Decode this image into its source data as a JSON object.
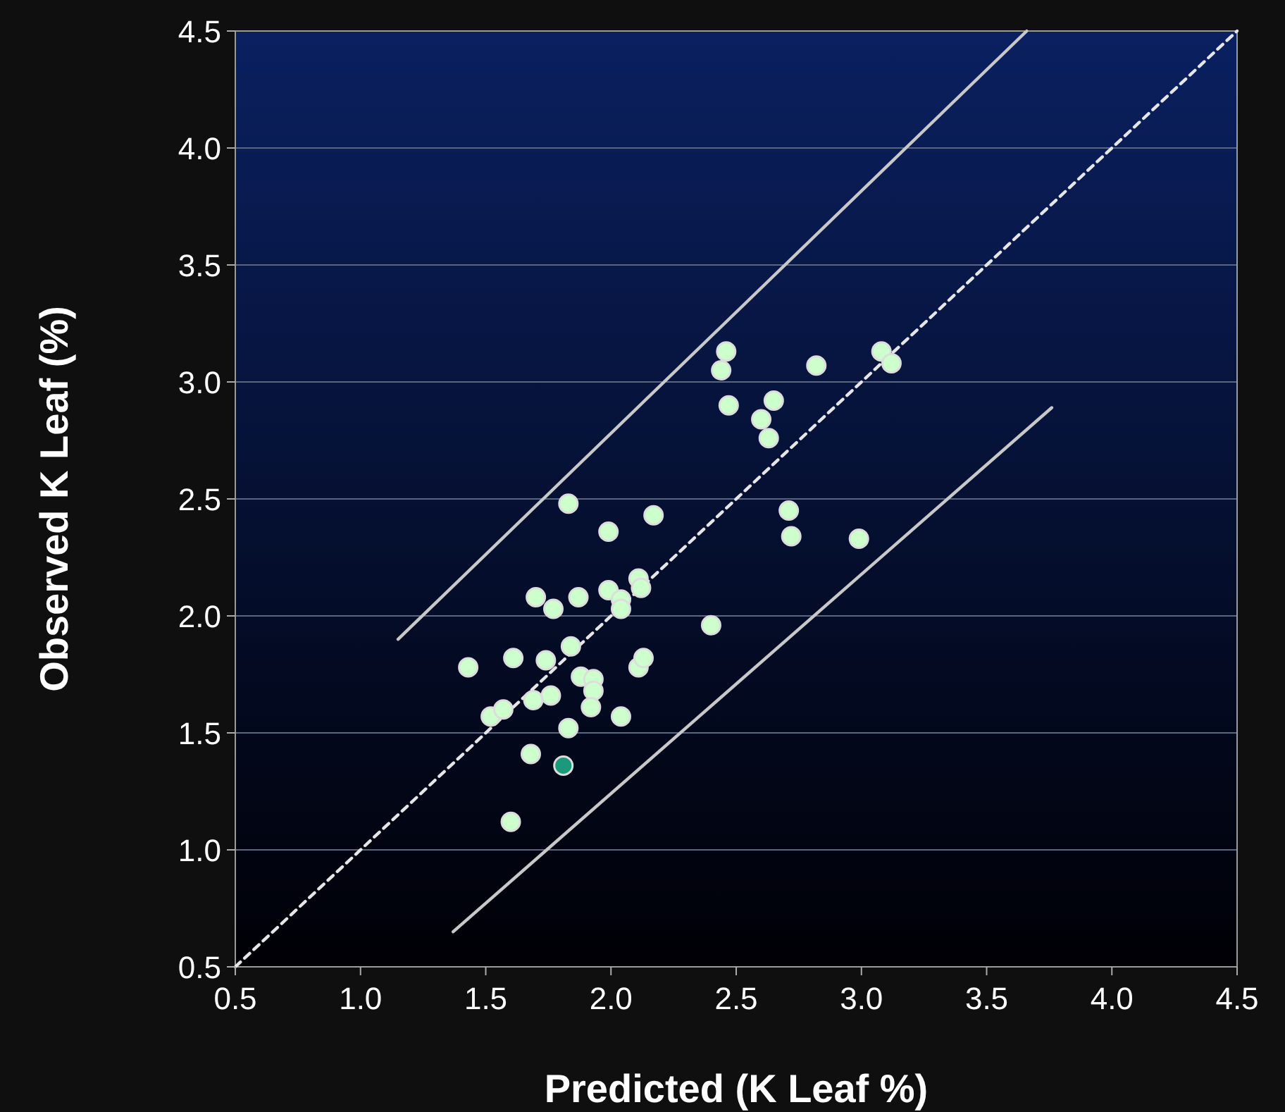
{
  "chart_data": {
    "type": "scatter",
    "xlabel": "Predicted (K Leaf %)",
    "ylabel": "Observed K Leaf (%)",
    "xlim": [
      0.5,
      4.5
    ],
    "ylim": [
      0.5,
      4.5
    ],
    "xticks": [
      {
        "value": 0.5,
        "label": "0.5"
      },
      {
        "value": 1,
        "label": "1.0"
      },
      {
        "value": 1.5,
        "label": "1.5"
      },
      {
        "value": 2,
        "label": "2.0"
      },
      {
        "value": 2.5,
        "label": "2.5"
      },
      {
        "value": 3,
        "label": "3.0"
      },
      {
        "value": 3.5,
        "label": "3.5"
      },
      {
        "value": 4,
        "label": "4.0"
      },
      {
        "value": 4.5,
        "label": "4.5"
      }
    ],
    "yticks": [
      {
        "value": 0.5,
        "label": "0.5"
      },
      {
        "value": 1,
        "label": "1.0"
      },
      {
        "value": 1.5,
        "label": "1.5"
      },
      {
        "value": 2,
        "label": "2.0"
      },
      {
        "value": 2.5,
        "label": "2.5"
      },
      {
        "value": 3,
        "label": "3.0"
      },
      {
        "value": 3.5,
        "label": "3.5"
      },
      {
        "value": 4,
        "label": "4.0"
      },
      {
        "value": 4.5,
        "label": "4.5"
      }
    ],
    "grid": "y",
    "series": [
      {
        "type": "line",
        "color": "#c8c8c8",
        "line_style": "solid",
        "marker": "none",
        "x": [
          1.15,
          3.66
        ],
        "values": [
          1.9,
          4.5
        ]
      },
      {
        "type": "line",
        "color": "#c8c8c8",
        "line_style": "solid",
        "marker": "none",
        "x": [
          1.37,
          3.76
        ],
        "values": [
          0.65,
          2.89
        ]
      },
      {
        "type": "line",
        "color": "#e6e6e6",
        "line_style": "dashed",
        "marker": "none",
        "x": [
          0.5,
          4.5
        ],
        "values": [
          0.5,
          4.5
        ]
      },
      {
        "marker": "circle",
        "color": "#ccffcc",
        "x": [
          1.43,
          1.52,
          1.57,
          1.61,
          1.6,
          1.68,
          1.7,
          1.69,
          1.74,
          1.76,
          1.77,
          1.83,
          1.83,
          1.84,
          1.87,
          1.88,
          1.93,
          1.93,
          1.92,
          1.99,
          1.99,
          2.04,
          2.04,
          2.04,
          2.11,
          2.12,
          2.11,
          2.13,
          2.17,
          2.4,
          2.44,
          2.46,
          2.47,
          2.6,
          2.63,
          2.65,
          2.71,
          2.72,
          2.82,
          2.99,
          3.08,
          3.12
        ],
        "values": [
          1.78,
          1.57,
          1.6,
          1.82,
          1.12,
          1.41,
          2.08,
          1.64,
          1.81,
          1.66,
          2.03,
          2.48,
          1.52,
          1.87,
          2.08,
          1.74,
          1.73,
          1.68,
          1.61,
          2.36,
          2.11,
          2.07,
          2.03,
          1.57,
          2.16,
          2.12,
          1.78,
          1.82,
          2.43,
          1.96,
          3.05,
          3.13,
          2.9,
          2.84,
          2.76,
          2.92,
          2.45,
          2.34,
          3.07,
          2.33,
          3.13,
          3.08
        ]
      },
      {
        "marker": "circle",
        "color": "#1a9a7a",
        "x": [
          1.81
        ],
        "values": [
          1.36
        ]
      }
    ]
  }
}
